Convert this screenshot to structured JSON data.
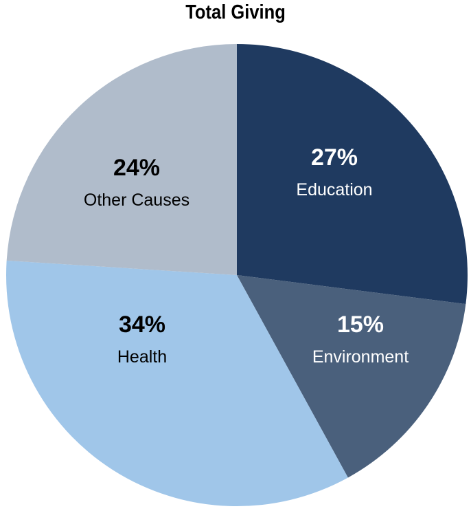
{
  "chart_data": {
    "type": "pie",
    "title": "Total Giving",
    "start": "12 o'clock",
    "direction": "clockwise",
    "slices": [
      {
        "label": "Education",
        "value": 27,
        "display": "27%",
        "color": "#1f3a60",
        "text_color": "#ffffff"
      },
      {
        "label": "Environment",
        "value": 15,
        "display": "15%",
        "color": "#4a607c",
        "text_color": "#ffffff"
      },
      {
        "label": "Health",
        "value": 34,
        "display": "34%",
        "color": "#a0c6e9",
        "text_color": "#000000"
      },
      {
        "label": "Other Causes",
        "value": 24,
        "display": "24%",
        "color": "#b0bccb",
        "text_color": "#000000"
      }
    ]
  }
}
